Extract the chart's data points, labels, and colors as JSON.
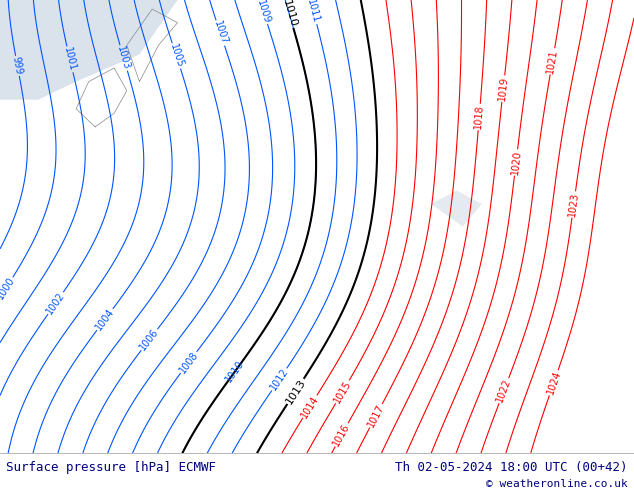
{
  "title_left": "Surface pressure [hPa] ECMWF",
  "title_right": "Th 02-05-2024 18:00 UTC (00+42)",
  "copyright": "© weatheronline.co.uk",
  "bg_color": "#c8e8b0",
  "sea_color": "#d4dde8",
  "contour_color_red": "#ff0000",
  "contour_color_blue": "#0055ff",
  "contour_color_black": "#000000",
  "footer_text_color": "#000080",
  "figsize": [
    6.34,
    4.9
  ],
  "dpi": 100,
  "font_size_footer": 9,
  "font_size_labels": 7
}
